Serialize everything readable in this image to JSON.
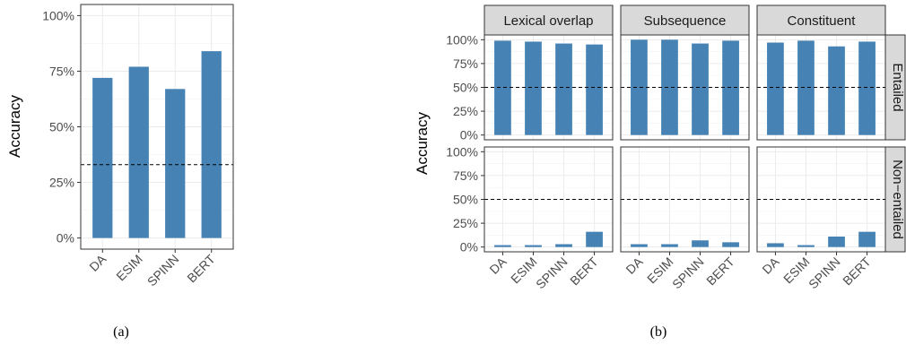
{
  "captions": {
    "a": "(a)",
    "b": "(b)"
  },
  "colors": {
    "bar": "#4682b4"
  },
  "chart_data": [
    {
      "type": "bar",
      "title": "",
      "xlabel": "",
      "ylabel": "Accuracy",
      "categories": [
        "DA",
        "ESIM",
        "SPINN",
        "BERT"
      ],
      "values": [
        72,
        77,
        67,
        84
      ],
      "ylim": [
        0,
        100
      ],
      "yticks": [
        "0%",
        "25%",
        "50%",
        "75%",
        "100%"
      ],
      "baseline": 33,
      "grid": true
    },
    {
      "type": "bar",
      "title": "",
      "xlabel": "",
      "ylabel": "Accuracy",
      "categories": [
        "DA",
        "ESIM",
        "SPINN",
        "BERT"
      ],
      "ylim": [
        0,
        100
      ],
      "yticks": [
        "0%",
        "25%",
        "50%",
        "75%",
        "100%"
      ],
      "baseline": 50,
      "grid": true,
      "columns": [
        "Lexical overlap",
        "Subsequence",
        "Constituent"
      ],
      "rows": [
        "Entailed",
        "Non−entailed"
      ],
      "panels": [
        {
          "column": "Lexical overlap",
          "row": "Entailed",
          "values": [
            99,
            98,
            96,
            95
          ]
        },
        {
          "column": "Subsequence",
          "row": "Entailed",
          "values": [
            100,
            100,
            96,
            99
          ]
        },
        {
          "column": "Constituent",
          "row": "Entailed",
          "values": [
            97,
            99,
            93,
            98
          ]
        },
        {
          "column": "Lexical overlap",
          "row": "Non−entailed",
          "values": [
            2,
            2,
            3,
            16
          ]
        },
        {
          "column": "Subsequence",
          "row": "Non−entailed",
          "values": [
            3,
            3,
            7,
            5
          ]
        },
        {
          "column": "Constituent",
          "row": "Non−entailed",
          "values": [
            4,
            2,
            11,
            16
          ]
        }
      ]
    }
  ]
}
